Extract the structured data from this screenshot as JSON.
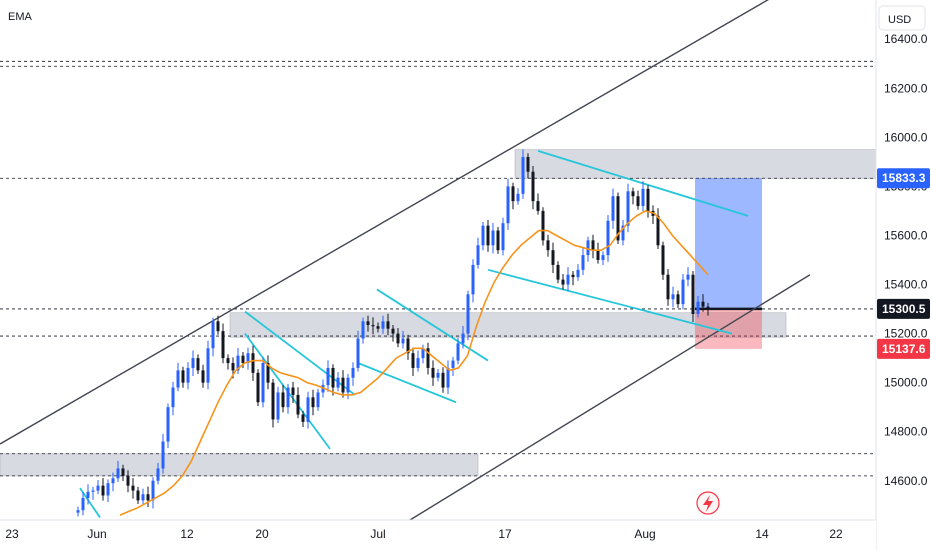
{
  "header": {
    "indicator_label": "EMA",
    "currency_label": "USD"
  },
  "chart_data": {
    "type": "line",
    "series_kind": "candlestick",
    "x_axis": {
      "ticks": [
        "23",
        "Jun",
        "12",
        "20",
        "Jul",
        "17",
        "Aug",
        "14",
        "22"
      ]
    },
    "y_axis": {
      "ylim": [
        14440,
        16560
      ],
      "ticks": [
        14600,
        14800,
        15000,
        15200,
        15400,
        15600,
        15800,
        16000,
        16200,
        16400
      ],
      "tick_labels": [
        "14600.0",
        "14800.0",
        "15000.0",
        "15200.0",
        "15400.0",
        "15600.0",
        "15800.0",
        "16000.0",
        "16200.0",
        "16400.0"
      ]
    },
    "price_badges": [
      {
        "label": "15833.3",
        "value": 15833.3,
        "color": "#2962ff"
      },
      {
        "label": "15300.5",
        "value": 15300.5,
        "color": "#131722"
      },
      {
        "label": "15137.6",
        "value": 15137.6,
        "color": "#f23645"
      }
    ],
    "horizontal_levels": [
      16310,
      16290,
      15833.3,
      15300.5,
      15190,
      14710,
      14620
    ],
    "candles_close": [
      14480,
      14530,
      14555,
      14560,
      14580,
      14540,
      14590,
      14610,
      14650,
      14620,
      14580,
      14560,
      14520,
      14545,
      14520,
      14600,
      14650,
      14760,
      14900,
      14980,
      15050,
      15000,
      15060,
      15100,
      15050,
      15000,
      15140,
      15250,
      15210,
      15100,
      15080,
      15050,
      15110,
      15080,
      15120,
      15040,
      14920,
      15080,
      15000,
      14850,
      14960,
      14900,
      14980,
      14950,
      14870,
      14840,
      14940,
      14900,
      14960,
      14990,
      15060,
      14980,
      15020,
      14960,
      15020,
      15060,
      15180,
      15250,
      15235,
      15230,
      15220,
      15250,
      15220,
      15200,
      15160,
      15180,
      15120,
      15060,
      15100,
      15140,
      15060,
      15020,
      15040,
      14980,
      15060,
      15090,
      15160,
      15200,
      15360,
      15480,
      15560,
      15640,
      15560,
      15620,
      15540,
      15650,
      15800,
      15740,
      15770,
      15920,
      15860,
      15740,
      15700,
      15580,
      15540,
      15480,
      15420,
      15400,
      15440,
      15430,
      15460,
      15520,
      15580,
      15540,
      15500,
      15520,
      15660,
      15760,
      15580,
      15640,
      15780,
      15760,
      15720,
      15790,
      15700,
      15680,
      15560,
      15440,
      15340,
      15360,
      15320,
      15420,
      15440,
      15280,
      15330,
      15310,
      15300
    ],
    "ema_values": [
      14460,
      14475,
      14490,
      14510,
      14530,
      14550,
      14580,
      14620,
      14680,
      14760,
      14840,
      14920,
      14990,
      15050,
      15080,
      15090,
      15090,
      15060,
      15040,
      15030,
      15020,
      15000,
      14990,
      14975,
      14960,
      14950,
      14950,
      14960,
      14990,
      15020,
      15060,
      15100,
      15120,
      15140,
      15140,
      15110,
      15080,
      15050,
      15060,
      15110,
      15230,
      15330,
      15410,
      15470,
      15520,
      15560,
      15590,
      15620,
      15620,
      15600,
      15580,
      15560,
      15550,
      15540,
      15540,
      15560,
      15610,
      15650,
      15680,
      15700,
      15690,
      15650,
      15600,
      15560,
      15520,
      15480,
      15440
    ],
    "trendlines": [
      {
        "name": "ascending-channel-upper",
        "points": [
          [
            0,
            14750
          ],
          [
            810,
            16660
          ]
        ]
      },
      {
        "name": "ascending-channel-lower",
        "points": [
          [
            410,
            14440
          ],
          [
            810,
            15440
          ]
        ]
      },
      {
        "name": "upper-channel-top",
        "points": [
          [
            538,
            15945
          ],
          [
            748,
            15680
          ]
        ]
      },
      {
        "name": "upper-channel-bottom",
        "points": [
          [
            488,
            15460
          ],
          [
            732,
            15200
          ]
        ]
      },
      {
        "name": "june-flag-top",
        "points": [
          [
            245,
            15290
          ],
          [
            355,
            14950
          ]
        ]
      },
      {
        "name": "june-flag-bottom",
        "points": [
          [
            245,
            15200
          ],
          [
            330,
            14730
          ]
        ]
      },
      {
        "name": "july-flag-top",
        "points": [
          [
            377,
            15380
          ],
          [
            488,
            15090
          ]
        ]
      },
      {
        "name": "july-flag-bottom",
        "points": [
          [
            358,
            15080
          ],
          [
            456,
            14920
          ]
        ]
      },
      {
        "name": "may-flag-line",
        "points": [
          [
            80,
            14570
          ],
          [
            100,
            14450
          ]
        ]
      }
    ],
    "zones": [
      {
        "name": "resistance-zone",
        "x_start": 515,
        "x_end": 876,
        "y_top": 15950,
        "y_bottom": 15833
      },
      {
        "name": "support-zone-mid",
        "x_start": 230,
        "x_end": 786,
        "y_top": 15285,
        "y_bottom": 15185
      },
      {
        "name": "support-zone-low",
        "x_start": 0,
        "x_end": 478,
        "y_top": 14710,
        "y_bottom": 14620
      }
    ],
    "position": {
      "x_start": 695,
      "x_end": 762,
      "entry": 15300.5,
      "take_profit": 15833.3,
      "stop_loss": 15137.6
    }
  }
}
